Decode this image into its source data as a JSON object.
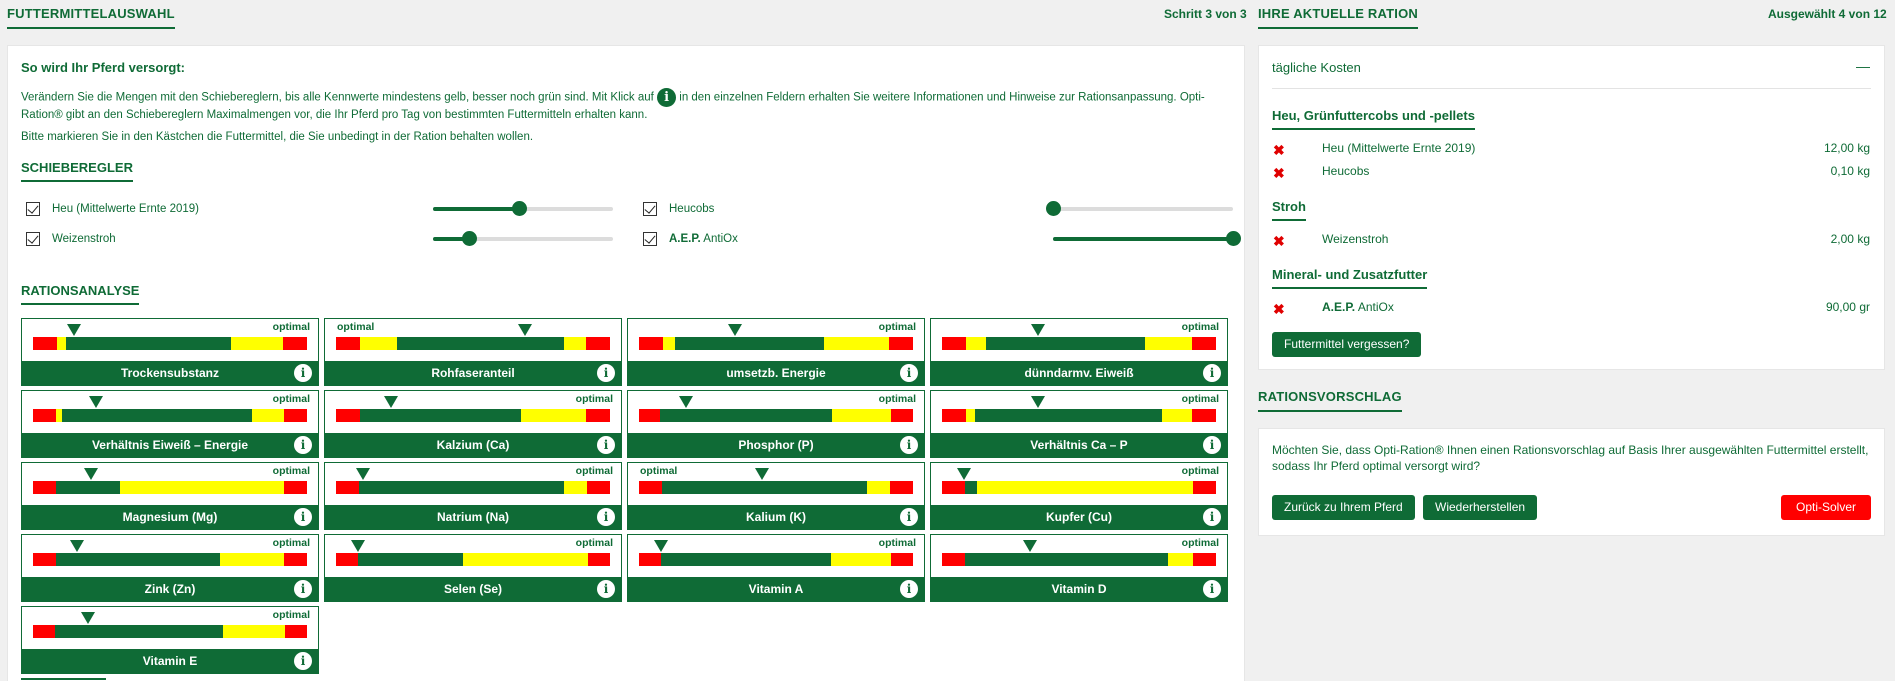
{
  "header": {
    "left_title": "FUTTERMITTELAUSWAHL",
    "step": "Schritt 3 von 3",
    "right_title": "IHRE AKTUELLE RATION",
    "selected": "Ausgewählt 4 von 12"
  },
  "intro": {
    "title": "So wird Ihr Pferd versorgt:",
    "p1a": "Verändern Sie die Mengen mit den Schiebereglern, bis alle Kennwerte mindestens gelb, besser noch grün sind. Mit Klick auf",
    "p1b": "in den einzelnen Feldern erhalten Sie weitere Informationen und Hinweise zur Rationsanpassung. Opti-Ration® gibt an den Schiebereglern Maximalmengen vor, die Ihr Pferd pro Tag von bestimmten Futtermitteln erhalten kann.",
    "p2": "Bitte markieren Sie in den Kästchen die Futtermittel, die Sie unbedingt in der Ration behalten wollen.",
    "info_glyph": "i"
  },
  "sliders": {
    "heading": "SCHIEBEREGLER",
    "items": [
      {
        "label": "Heu (Mittelwerte Ernte 2019)",
        "checked": true,
        "value": 0.48
      },
      {
        "label": "Heucobs",
        "checked": true,
        "value": 0.0
      },
      {
        "label": "Weizenstroh",
        "checked": true,
        "value": 0.2
      },
      {
        "label_bold": "A.E.P.",
        "label_rest": " AntiOx",
        "checked": true,
        "value": 1.0
      }
    ]
  },
  "analysis": {
    "heading": "RATIONSANALYSE",
    "optimal_label": "optimal",
    "info_glyph": "i",
    "cards": [
      {
        "name": "Trockensubstanz",
        "segs": [
          [
            "r",
            0.08
          ],
          [
            "y",
            0.03
          ],
          [
            "g",
            0.54
          ],
          [
            "y",
            0.17
          ],
          [
            "r",
            0.08
          ]
        ],
        "marker": 0.15,
        "opt": "right"
      },
      {
        "name": "Rohfaseranteil",
        "segs": [
          [
            "r",
            0.08
          ],
          [
            "y",
            0.12
          ],
          [
            "g",
            0.55
          ],
          [
            "y",
            0.07
          ],
          [
            "r",
            0.08
          ]
        ],
        "marker": 0.69,
        "opt": "left"
      },
      {
        "name": "umsetzb. Energie",
        "segs": [
          [
            "r",
            0.08
          ],
          [
            "y",
            0.04
          ],
          [
            "g",
            0.5
          ],
          [
            "y",
            0.22
          ],
          [
            "r",
            0.08
          ]
        ],
        "marker": 0.35,
        "opt": "right"
      },
      {
        "name": "dünndarmv. Eiweiß",
        "segs": [
          [
            "r",
            0.08
          ],
          [
            "y",
            0.07
          ],
          [
            "g",
            0.54
          ],
          [
            "y",
            0.16
          ],
          [
            "r",
            0.08
          ]
        ],
        "marker": 0.35,
        "opt": "right"
      },
      {
        "name": "Verhältnis Eiweiß – Energie",
        "segs": [
          [
            "r",
            0.08
          ],
          [
            "y",
            0.02
          ],
          [
            "g",
            0.65
          ],
          [
            "y",
            0.11
          ],
          [
            "r",
            0.08
          ]
        ],
        "marker": 0.23,
        "opt": "right"
      },
      {
        "name": "Kalzium (Ca)",
        "segs": [
          [
            "r",
            0.08
          ],
          [
            "g",
            0.54
          ],
          [
            "y",
            0.22
          ],
          [
            "r",
            0.08
          ]
        ],
        "marker": 0.2,
        "opt": "right"
      },
      {
        "name": "Phosphor (P)",
        "segs": [
          [
            "r",
            0.08
          ],
          [
            "g",
            0.64
          ],
          [
            "y",
            0.22
          ],
          [
            "r",
            0.08
          ]
        ],
        "marker": 0.17,
        "opt": "right"
      },
      {
        "name": "Verhältnis Ca – P",
        "segs": [
          [
            "r",
            0.08
          ],
          [
            "y",
            0.03
          ],
          [
            "g",
            0.63
          ],
          [
            "y",
            0.1
          ],
          [
            "r",
            0.08
          ]
        ],
        "marker": 0.35,
        "opt": "right"
      },
      {
        "name": "Magnesium (Mg)",
        "segs": [
          [
            "r",
            0.08
          ],
          [
            "g",
            0.22
          ],
          [
            "y",
            0.56
          ],
          [
            "r",
            0.08
          ]
        ],
        "marker": 0.21,
        "opt": "right"
      },
      {
        "name": "Natrium (Na)",
        "segs": [
          [
            "r",
            0.08
          ],
          [
            "g",
            0.71
          ],
          [
            "y",
            0.08
          ],
          [
            "r",
            0.08
          ]
        ],
        "marker": 0.1,
        "opt": "right"
      },
      {
        "name": "Kalium (K)",
        "segs": [
          [
            "r",
            0.08
          ],
          [
            "g",
            0.72
          ],
          [
            "y",
            0.08
          ],
          [
            "r",
            0.08
          ]
        ],
        "marker": 0.45,
        "opt": "left"
      },
      {
        "name": "Kupfer (Cu)",
        "segs": [
          [
            "r",
            0.08
          ],
          [
            "g",
            0.04
          ],
          [
            "y",
            0.75
          ],
          [
            "r",
            0.08
          ]
        ],
        "marker": 0.08,
        "opt": "right"
      },
      {
        "name": "Zink (Zn)",
        "segs": [
          [
            "r",
            0.08
          ],
          [
            "g",
            0.57
          ],
          [
            "y",
            0.22
          ],
          [
            "r",
            0.08
          ]
        ],
        "marker": 0.16,
        "opt": "right"
      },
      {
        "name": "Selen (Se)",
        "segs": [
          [
            "r",
            0.08
          ],
          [
            "g",
            0.38
          ],
          [
            "y",
            0.45
          ],
          [
            "r",
            0.08
          ]
        ],
        "marker": 0.08,
        "opt": "right"
      },
      {
        "name": "Vitamin A",
        "segs": [
          [
            "r",
            0.08
          ],
          [
            "g",
            0.62
          ],
          [
            "y",
            0.22
          ],
          [
            "r",
            0.08
          ]
        ],
        "marker": 0.08,
        "opt": "right"
      },
      {
        "name": "Vitamin D",
        "segs": [
          [
            "r",
            0.08
          ],
          [
            "g",
            0.72
          ],
          [
            "y",
            0.09
          ],
          [
            "r",
            0.08
          ]
        ],
        "marker": 0.32,
        "opt": "right"
      },
      {
        "name": "Vitamin E",
        "segs": [
          [
            "r",
            0.08
          ],
          [
            "g",
            0.6
          ],
          [
            "y",
            0.22
          ],
          [
            "r",
            0.08
          ]
        ],
        "marker": 0.2,
        "opt": "right"
      }
    ]
  },
  "ration": {
    "costs_label": "tägliche Kosten",
    "collapse_glyph": "—",
    "groups": [
      {
        "title": "Heu, Grünfuttercobs und -pellets",
        "items": [
          {
            "name": "Heu (Mittelwerte Ernte 2019)",
            "amount": "12,00 kg"
          },
          {
            "name": "Heucobs",
            "amount": "0,10 kg"
          }
        ]
      },
      {
        "title": "Stroh",
        "items": [
          {
            "name": "Weizenstroh",
            "amount": "2,00 kg"
          }
        ]
      },
      {
        "title": "Mineral- und Zusatzfutter",
        "items": [
          {
            "name_bold": "A.E.P.",
            "name_rest": " AntiOx",
            "amount": "90,00 gr"
          }
        ]
      }
    ],
    "remove_glyph": "✖",
    "forgot_button": "Futtermittel vergessen?"
  },
  "suggestion": {
    "heading": "RATIONSVORSCHLAG",
    "text": "Möchten Sie, dass Opti-Ration® Ihnen einen Rationsvorschlag auf Basis Ihrer ausgewählten Futtermittel erstellt, sodass Ihr Pferd optimal versorgt wird?",
    "back_button": "Zurück zu Ihrem Pferd",
    "restore_button": "Wiederherstellen",
    "solver_button": "Opti-Solver"
  },
  "colors": {
    "green": "#0f6b36",
    "yellow": "#ffff00",
    "red": "#ff0000"
  }
}
